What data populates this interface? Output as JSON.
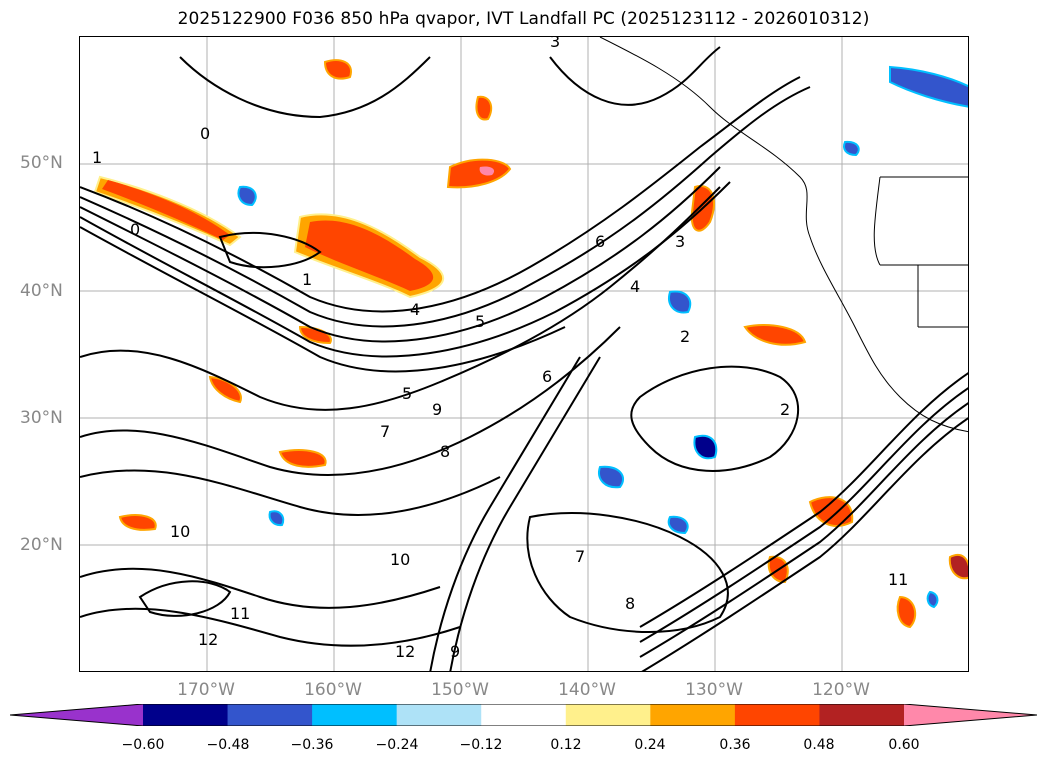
{
  "title": "2025122900 F036 850 hPa qvapor, IVT Landfall PC (2025123112 - 2026010312)",
  "lat_labels": [
    "50°N",
    "40°N",
    "30°N",
    "20°N"
  ],
  "lon_labels": [
    "170°W",
    "160°W",
    "150°W",
    "140°W",
    "130°W",
    "120°W"
  ],
  "colorbar": {
    "ticks": [
      "−0.60",
      "−0.48",
      "−0.36",
      "−0.24",
      "−0.12",
      "0.12",
      "0.24",
      "0.36",
      "0.48",
      "0.60"
    ],
    "colors": [
      "#9932cc",
      "#00008b",
      "#3355cc",
      "#00bfff",
      "#aee2f7",
      "#ffffff",
      "#fff08c",
      "#ffa500",
      "#ff4500",
      "#b22222",
      "#ff88aa"
    ]
  },
  "contour_labels": [
    "1",
    "2",
    "3",
    "4",
    "5",
    "6",
    "7",
    "8",
    "9",
    "10",
    "11",
    "12",
    "0"
  ]
}
